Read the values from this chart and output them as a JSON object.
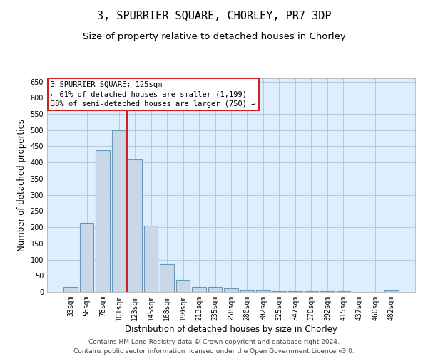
{
  "title": "3, SPURRIER SQUARE, CHORLEY, PR7 3DP",
  "subtitle": "Size of property relative to detached houses in Chorley",
  "xlabel": "Distribution of detached houses by size in Chorley",
  "ylabel": "Number of detached properties",
  "bar_labels": [
    "33sqm",
    "56sqm",
    "78sqm",
    "101sqm",
    "123sqm",
    "145sqm",
    "168sqm",
    "190sqm",
    "213sqm",
    "235sqm",
    "258sqm",
    "280sqm",
    "302sqm",
    "325sqm",
    "347sqm",
    "370sqm",
    "392sqm",
    "415sqm",
    "437sqm",
    "460sqm",
    "482sqm"
  ],
  "bar_values": [
    15,
    213,
    437,
    500,
    410,
    205,
    85,
    38,
    15,
    15,
    10,
    5,
    4,
    2,
    2,
    2,
    2,
    2,
    1,
    1,
    4
  ],
  "bar_color": "#c8d8e8",
  "bar_edgecolor": "#6699bb",
  "bar_linewidth": 0.8,
  "vline_color": "#cc2222",
  "vline_linewidth": 1.5,
  "vline_x": 3.5,
  "annotation_line1": "3 SPURRIER SQUARE: 125sqm",
  "annotation_line2": "← 61% of detached houses are smaller (1,199)",
  "annotation_line3": "38% of semi-detached houses are larger (750) →",
  "annotation_box_color": "#cc2222",
  "annotation_fontsize": 7.5,
  "ylim": [
    0,
    660
  ],
  "yticks": [
    0,
    50,
    100,
    150,
    200,
    250,
    300,
    350,
    400,
    450,
    500,
    550,
    600,
    650
  ],
  "grid_color": "#aabbcc",
  "grid_linewidth": 0.5,
  "background_color": "#ffffff",
  "plot_bg_color": "#ddeeff",
  "title_fontsize": 11,
  "subtitle_fontsize": 9.5,
  "xlabel_fontsize": 8.5,
  "ylabel_fontsize": 8.5,
  "tick_fontsize": 7,
  "footer_line1": "Contains HM Land Registry data © Crown copyright and database right 2024.",
  "footer_line2": "Contains public sector information licensed under the Open Government Licence v3.0.",
  "footer_fontsize": 6.5
}
